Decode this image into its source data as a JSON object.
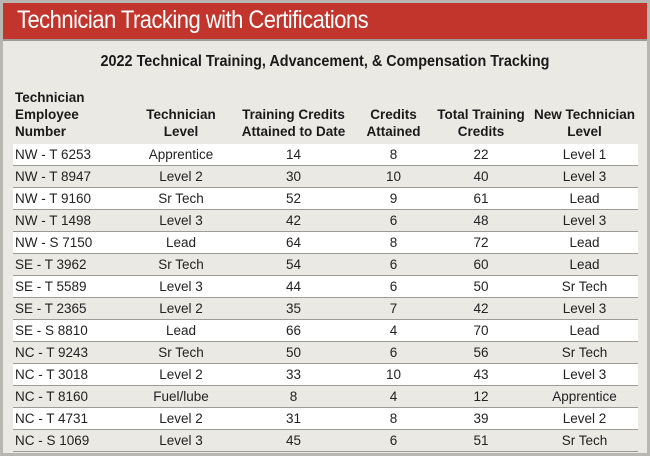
{
  "banner": {
    "title": "Technician Tracking with Certifications"
  },
  "subtitle": "2022 Technical Training, Advancement, & Compensation Tracking",
  "table": {
    "headers": [
      [
        "Technician",
        "Employee Number"
      ],
      [
        "Technician",
        "Level"
      ],
      [
        "Training Credits",
        "Attained to Date"
      ],
      [
        "Credits",
        "Attained"
      ],
      [
        "Total Training",
        "Credits"
      ],
      [
        "New Technician",
        "Level"
      ]
    ],
    "rows": [
      [
        "NW - T 6253",
        "Apprentice",
        "14",
        "8",
        "22",
        "Level 1"
      ],
      [
        "NW - T 8947",
        "Level 2",
        "30",
        "10",
        "40",
        "Level 3"
      ],
      [
        "NW - T 9160",
        "Sr Tech",
        "52",
        "9",
        "61",
        "Lead"
      ],
      [
        "NW - T 1498",
        "Level 3",
        "42",
        "6",
        "48",
        "Level 3"
      ],
      [
        "NW - S 7150",
        "Lead",
        "64",
        "8",
        "72",
        "Lead"
      ],
      [
        "SE - T 3962",
        "Sr Tech",
        "54",
        "6",
        "60",
        "Lead"
      ],
      [
        "SE - T 5589",
        "Level 3",
        "44",
        "6",
        "50",
        "Sr Tech"
      ],
      [
        "SE - T 2365",
        "Level 2",
        "35",
        "7",
        "42",
        "Level 3"
      ],
      [
        "SE - S 8810",
        "Lead",
        "66",
        "4",
        "70",
        "Lead"
      ],
      [
        "NC - T 9243",
        "Sr Tech",
        "50",
        "6",
        "56",
        "Sr Tech"
      ],
      [
        "NC - T 3018",
        "Level 2",
        "33",
        "10",
        "43",
        "Level 3"
      ],
      [
        "NC - T 8160",
        "Fuel/lube",
        "8",
        "4",
        "12",
        "Apprentice"
      ],
      [
        "NC - T 4731",
        "Level 2",
        "31",
        "8",
        "39",
        "Level 2"
      ],
      [
        "NC - S 1069",
        "Level 3",
        "45",
        "6",
        "51",
        "Sr Tech"
      ]
    ]
  },
  "colors": {
    "banner": "#c1352c",
    "background": "#ebe9e4",
    "row_alt": "#ffffff"
  }
}
